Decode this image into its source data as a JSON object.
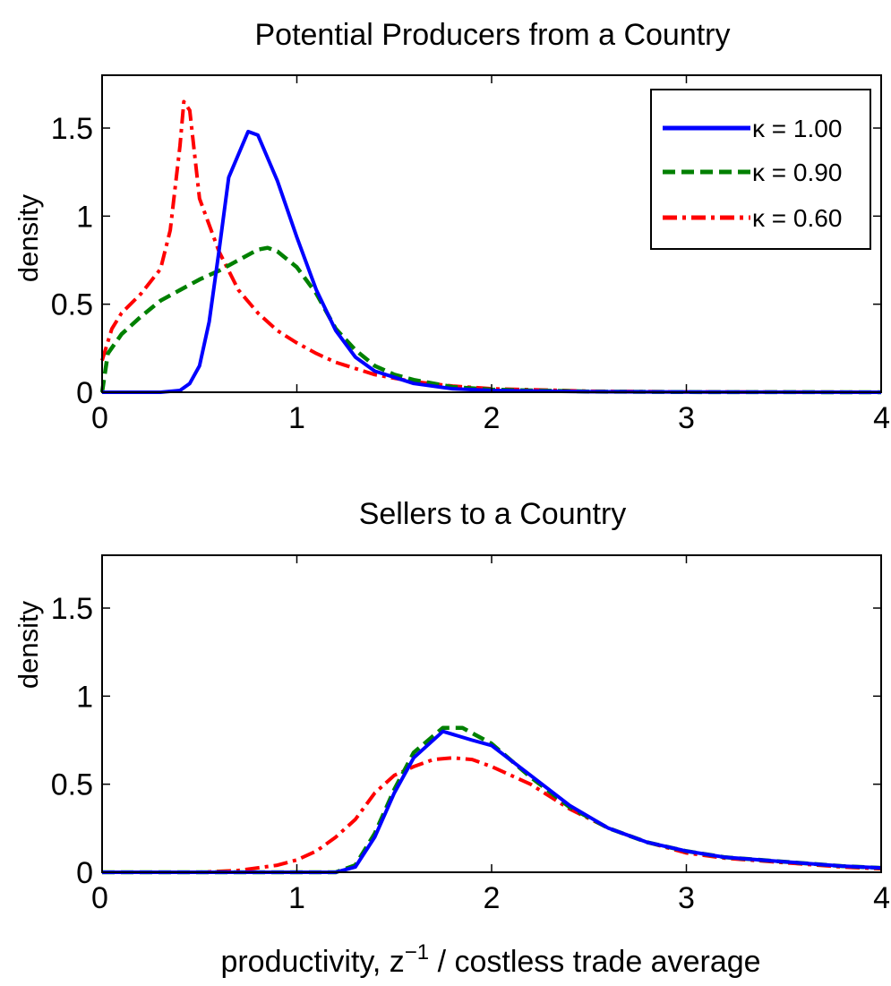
{
  "chart_data": [
    {
      "type": "line",
      "title": "Potential Producers from a Country",
      "xlabel": "",
      "ylabel": "density",
      "xlim": [
        0,
        4
      ],
      "ylim": [
        0,
        1.8
      ],
      "xticks": [
        "0",
        "1",
        "2",
        "3",
        "4"
      ],
      "yticks": [
        "0",
        "0.5",
        "1",
        "1.5"
      ],
      "grid": false,
      "legend_position": "top-right",
      "series": [
        {
          "name": "κ = 1.00",
          "color": "#0000ff",
          "style": "solid",
          "points": [
            [
              0,
              0
            ],
            [
              0.3,
              0
            ],
            [
              0.4,
              0.01
            ],
            [
              0.45,
              0.05
            ],
            [
              0.5,
              0.15
            ],
            [
              0.55,
              0.4
            ],
            [
              0.6,
              0.8
            ],
            [
              0.65,
              1.22
            ],
            [
              0.75,
              1.48
            ],
            [
              0.8,
              1.46
            ],
            [
              0.9,
              1.2
            ],
            [
              1.0,
              0.88
            ],
            [
              1.1,
              0.58
            ],
            [
              1.2,
              0.35
            ],
            [
              1.3,
              0.2
            ],
            [
              1.4,
              0.12
            ],
            [
              1.6,
              0.05
            ],
            [
              1.8,
              0.02
            ],
            [
              2.0,
              0.01
            ],
            [
              2.5,
              0.003
            ],
            [
              3.0,
              0.001
            ],
            [
              4.0,
              0
            ]
          ]
        },
        {
          "name": "κ = 0.90",
          "color": "#008000",
          "style": "dashed",
          "points": [
            [
              0,
              0
            ],
            [
              0.03,
              0.22
            ],
            [
              0.1,
              0.33
            ],
            [
              0.2,
              0.43
            ],
            [
              0.3,
              0.52
            ],
            [
              0.4,
              0.58
            ],
            [
              0.5,
              0.64
            ],
            [
              0.6,
              0.69
            ],
            [
              0.7,
              0.75
            ],
            [
              0.8,
              0.81
            ],
            [
              0.85,
              0.82
            ],
            [
              0.9,
              0.8
            ],
            [
              1.0,
              0.71
            ],
            [
              1.1,
              0.56
            ],
            [
              1.2,
              0.36
            ],
            [
              1.3,
              0.24
            ],
            [
              1.4,
              0.15
            ],
            [
              1.5,
              0.1
            ],
            [
              1.6,
              0.07
            ],
            [
              1.8,
              0.03
            ],
            [
              2.0,
              0.015
            ],
            [
              2.5,
              0.004
            ],
            [
              3.0,
              0.001
            ],
            [
              4.0,
              0
            ]
          ]
        },
        {
          "name": "κ = 0.60",
          "color": "#ff0000",
          "style": "dashdot",
          "points": [
            [
              0,
              0.18
            ],
            [
              0.05,
              0.36
            ],
            [
              0.1,
              0.45
            ],
            [
              0.2,
              0.56
            ],
            [
              0.3,
              0.7
            ],
            [
              0.35,
              0.92
            ],
            [
              0.4,
              1.4
            ],
            [
              0.42,
              1.65
            ],
            [
              0.45,
              1.6
            ],
            [
              0.5,
              1.1
            ],
            [
              0.6,
              0.8
            ],
            [
              0.7,
              0.58
            ],
            [
              0.8,
              0.45
            ],
            [
              0.9,
              0.35
            ],
            [
              1.0,
              0.28
            ],
            [
              1.1,
              0.22
            ],
            [
              1.2,
              0.17
            ],
            [
              1.4,
              0.1
            ],
            [
              1.6,
              0.06
            ],
            [
              1.8,
              0.035
            ],
            [
              2.0,
              0.02
            ],
            [
              2.5,
              0.006
            ],
            [
              3.0,
              0.002
            ],
            [
              4.0,
              0
            ]
          ]
        }
      ]
    },
    {
      "type": "line",
      "title": "Sellers to a Country",
      "xlabel": "productivity, z^-1 / costless trade average",
      "ylabel": "density",
      "xlim": [
        0,
        4
      ],
      "ylim": [
        0,
        1.8
      ],
      "xticks": [
        "0",
        "1",
        "2",
        "3",
        "4"
      ],
      "yticks": [
        "0",
        "0.5",
        "1",
        "1.5"
      ],
      "grid": false,
      "series": [
        {
          "name": "κ = 1.00",
          "color": "#0000ff",
          "style": "solid",
          "points": [
            [
              0,
              0
            ],
            [
              1.0,
              0
            ],
            [
              1.2,
              0
            ],
            [
              1.3,
              0.03
            ],
            [
              1.4,
              0.2
            ],
            [
              1.5,
              0.45
            ],
            [
              1.6,
              0.65
            ],
            [
              1.75,
              0.8
            ],
            [
              1.9,
              0.75
            ],
            [
              2.0,
              0.72
            ],
            [
              2.2,
              0.55
            ],
            [
              2.4,
              0.38
            ],
            [
              2.6,
              0.25
            ],
            [
              2.8,
              0.17
            ],
            [
              3.0,
              0.12
            ],
            [
              3.2,
              0.085
            ],
            [
              3.5,
              0.06
            ],
            [
              3.8,
              0.035
            ],
            [
              4.0,
              0.025
            ]
          ]
        },
        {
          "name": "κ = 0.90",
          "color": "#008000",
          "style": "dashed",
          "points": [
            [
              0,
              0
            ],
            [
              1.0,
              0
            ],
            [
              1.2,
              0
            ],
            [
              1.3,
              0.04
            ],
            [
              1.4,
              0.22
            ],
            [
              1.5,
              0.47
            ],
            [
              1.6,
              0.68
            ],
            [
              1.75,
              0.82
            ],
            [
              1.85,
              0.82
            ],
            [
              2.0,
              0.73
            ],
            [
              2.2,
              0.54
            ],
            [
              2.4,
              0.37
            ],
            [
              2.6,
              0.25
            ],
            [
              2.8,
              0.17
            ],
            [
              3.0,
              0.12
            ],
            [
              3.2,
              0.085
            ],
            [
              3.5,
              0.06
            ],
            [
              3.8,
              0.035
            ],
            [
              4.0,
              0.025
            ]
          ]
        },
        {
          "name": "κ = 0.60",
          "color": "#ff0000",
          "style": "dashdot",
          "points": [
            [
              0,
              0
            ],
            [
              0.5,
              0
            ],
            [
              0.7,
              0.01
            ],
            [
              0.9,
              0.04
            ],
            [
              1.0,
              0.07
            ],
            [
              1.1,
              0.12
            ],
            [
              1.2,
              0.2
            ],
            [
              1.3,
              0.3
            ],
            [
              1.4,
              0.45
            ],
            [
              1.5,
              0.55
            ],
            [
              1.6,
              0.6
            ],
            [
              1.7,
              0.64
            ],
            [
              1.8,
              0.65
            ],
            [
              1.9,
              0.64
            ],
            [
              2.0,
              0.6
            ],
            [
              2.2,
              0.5
            ],
            [
              2.4,
              0.36
            ],
            [
              2.6,
              0.25
            ],
            [
              2.8,
              0.17
            ],
            [
              3.0,
              0.11
            ],
            [
              3.2,
              0.08
            ],
            [
              3.5,
              0.055
            ],
            [
              3.8,
              0.03
            ],
            [
              4.0,
              0.02
            ]
          ]
        }
      ]
    }
  ]
}
